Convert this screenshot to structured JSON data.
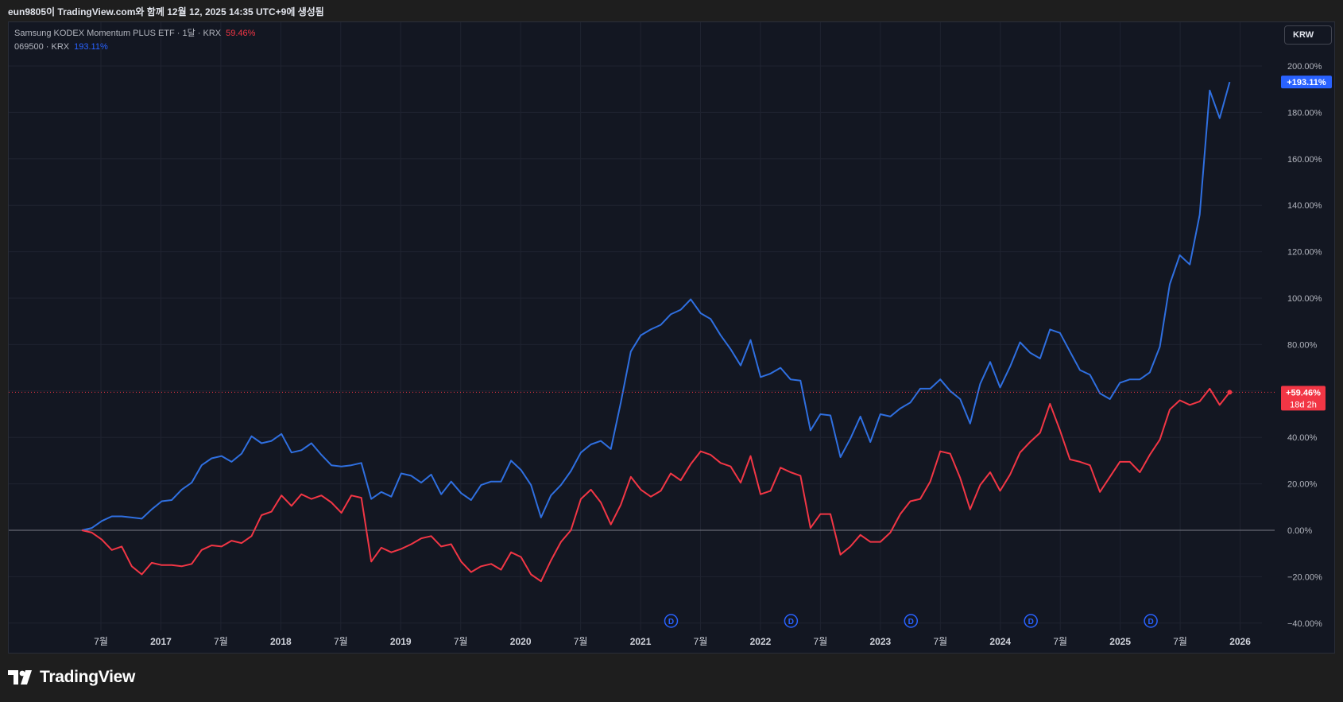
{
  "snapshot_caption": "eun9805이 TradingView.com와 함께 12월 12, 2025 14:35 UTC+9에 생성됨",
  "legend": {
    "series1_name": "Samsung KODEX Momentum PLUS ETF · 1달 · KRX",
    "series1_value": "59.46%",
    "series2_name": "069500 · KRX",
    "series2_value": "193.11%"
  },
  "currency_button": "KRW",
  "brand": "TradingView",
  "colors": {
    "blue": "#2f6fe0",
    "red": "#f23645",
    "background": "#131722",
    "grid": "#1f2330",
    "text": "#b2b5be"
  },
  "chart_data": {
    "type": "line",
    "title": "",
    "xlabel": "",
    "ylabel": "",
    "ylim": [
      -40,
      200
    ],
    "x_ticks": [
      "7월",
      "2017",
      "7월",
      "2018",
      "7월",
      "2019",
      "7월",
      "2020",
      "7월",
      "2021",
      "7월",
      "2022",
      "7월",
      "2023",
      "7월",
      "2024",
      "7월",
      "2025",
      "7월",
      "2026"
    ],
    "y_ticks": [
      "200.00%",
      "180.00%",
      "160.00%",
      "140.00%",
      "120.00%",
      "100.00%",
      "80.00%",
      "60.00%",
      "40.00%",
      "20.00%",
      "0.00%",
      "−20.00%",
      "−40.00%"
    ],
    "series": [
      {
        "name": "069500 · KRX",
        "color": "#2f6fe0",
        "last_label": "+193.11%",
        "values": [
          0,
          1,
          4,
          6,
          6,
          5.5,
          5,
          9,
          12.5,
          13,
          17.5,
          20.5,
          28,
          31,
          32,
          29.5,
          33,
          40.5,
          37.5,
          38.5,
          41.5,
          33.5,
          34.5,
          37.5,
          32.5,
          28,
          27.5,
          28,
          29,
          13.5,
          16.5,
          14.5,
          24.5,
          23.5,
          20.5,
          24,
          15.5,
          21,
          16,
          13,
          19.5,
          21,
          21,
          30,
          26,
          19.5,
          5.5,
          15,
          19.5,
          25.5,
          33.5,
          37,
          38.5,
          35,
          55,
          77,
          84,
          86.5,
          88.5,
          93,
          95,
          99.5,
          93.5,
          91,
          84,
          78,
          71,
          82,
          66,
          67.5,
          70,
          65,
          64.5,
          43,
          50,
          49.5,
          31.5,
          39.5,
          49,
          38,
          50,
          49,
          52.5,
          55,
          61,
          61,
          65,
          60,
          56.5,
          46,
          63,
          72.5,
          61.5,
          70.5,
          81,
          76.5,
          74,
          86.5,
          85,
          77,
          69,
          67,
          59,
          56.5,
          63.5,
          65,
          65,
          68,
          79,
          106,
          118.5,
          114.5,
          136,
          189.5,
          177.5,
          193.11
        ]
      },
      {
        "name": "Samsung KODEX Momentum PLUS ETF · 1달 · KRX",
        "color": "#f23645",
        "last_label": "+59.46%",
        "countdown": "18d 2h",
        "values": [
          0,
          -1,
          -4,
          -8.5,
          -7,
          -15.5,
          -19,
          -14,
          -15,
          -15,
          -15.5,
          -14.5,
          -8.5,
          -6.5,
          -7,
          -4.5,
          -5.5,
          -2.5,
          6.5,
          8,
          15,
          10.5,
          15.5,
          13.5,
          15,
          12,
          7.5,
          15,
          14,
          -13.5,
          -7.5,
          -9.5,
          -8,
          -6,
          -3.5,
          -2.5,
          -7,
          -6,
          -13.5,
          -18,
          -15.5,
          -14.5,
          -17,
          -9.5,
          -11.5,
          -19,
          -22,
          -13,
          -5,
          0,
          13.5,
          17.5,
          12,
          2.5,
          11,
          23,
          17.5,
          14.5,
          17,
          24.5,
          21.5,
          28.5,
          34,
          32.5,
          29,
          27.5,
          20.5,
          32,
          15.5,
          17,
          27,
          25,
          23.5,
          1,
          7,
          7,
          -10.5,
          -7,
          -2,
          -5,
          -5,
          -1,
          7,
          12.5,
          13.5,
          21,
          34,
          33,
          22.5,
          9,
          19.5,
          25,
          17,
          24,
          33.5,
          38,
          42,
          54.5,
          43,
          30.5,
          29.5,
          28,
          16.5,
          23,
          29.5,
          29.5,
          25,
          32.5,
          39,
          52,
          56,
          54,
          55.5,
          61,
          54,
          59.46
        ]
      }
    ],
    "dividend_markers": [
      "D",
      "D",
      "D",
      "D",
      "D"
    ]
  }
}
